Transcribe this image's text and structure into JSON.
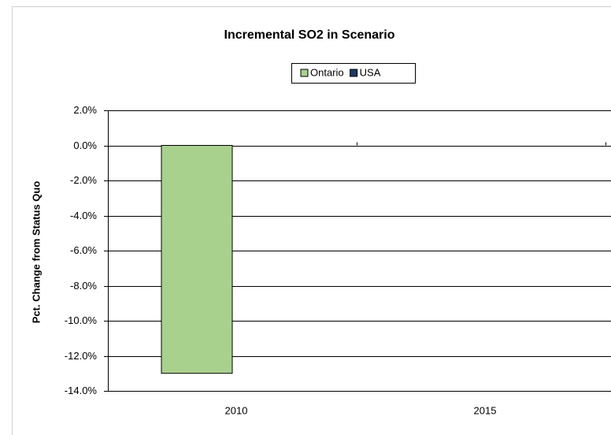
{
  "chart_data": {
    "type": "bar",
    "title": "Incremental SO2 in Scenario",
    "y_label": "Pct. Change from Status Quo",
    "categories": [
      "2010",
      "2015"
    ],
    "series": [
      {
        "name": "Ontario",
        "color": "#a9d18e",
        "values": [
          -13,
          0
        ]
      },
      {
        "name": "USA",
        "color": "#1f3864",
        "values": [
          0,
          0
        ]
      }
    ],
    "ylim": [
      -14,
      2
    ],
    "yticks": [
      {
        "value": 2,
        "label": "2.0%"
      },
      {
        "value": 0,
        "label": "0.0%"
      },
      {
        "value": -2,
        "label": "-2.0%"
      },
      {
        "value": -4,
        "label": "-4.0%"
      },
      {
        "value": -6,
        "label": "-6.0%"
      },
      {
        "value": -8,
        "label": "-8.0%"
      },
      {
        "value": -10,
        "label": "-10.0%"
      },
      {
        "value": -12,
        "label": "-12.0%"
      },
      {
        "value": -14,
        "label": "-14.0%"
      }
    ],
    "grid": true,
    "legend": "top"
  }
}
